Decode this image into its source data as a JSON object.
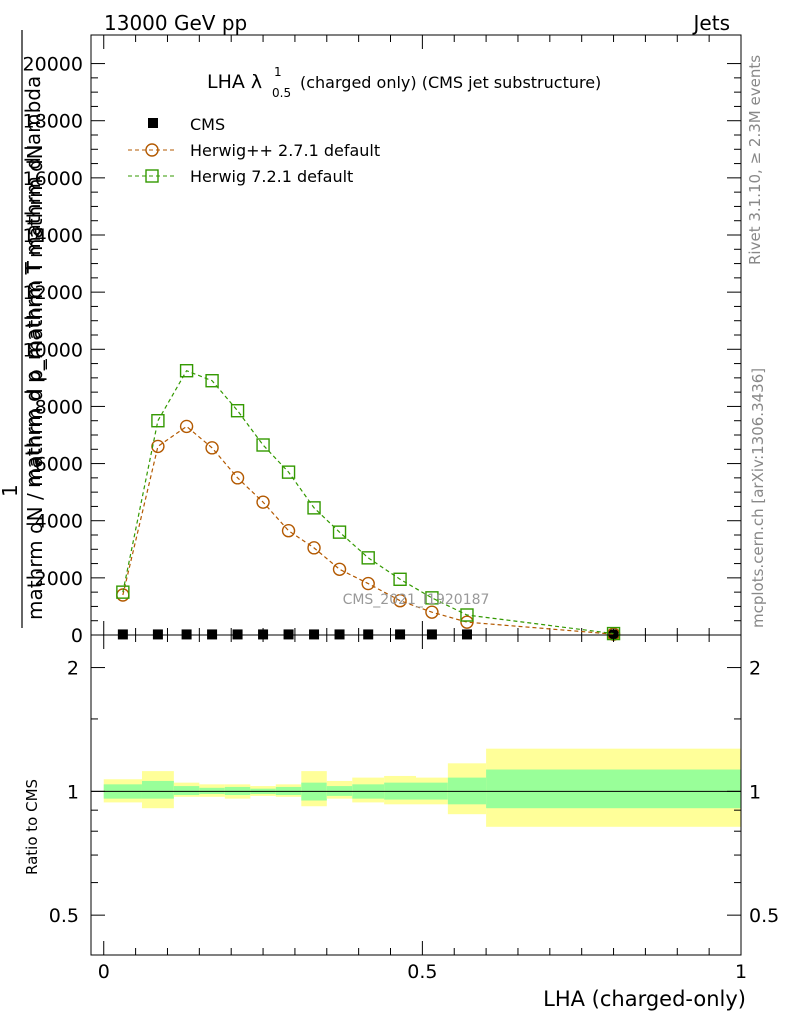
{
  "header": {
    "left": "13000 GeV pp",
    "right": "Jets"
  },
  "side_labels": {
    "rivet": "Rivet 3.1.10, ≥ 2.3M events",
    "mcplots": "mcplots.cern.ch [arXiv:1306.3436]"
  },
  "watermark": "CMS_2021_I1920187",
  "chart_data": [
    {
      "type": "scatter",
      "title": "LHA λ¹₀.₅ (charged only) (CMS jet substructure)",
      "title_parts": {
        "main": "LHA λ",
        "sup": "1",
        "sub": "0.5",
        "rest": "(charged only) (CMS jet substructure)"
      },
      "ylabel_top": "mathrm dN",
      "ylabel_mid": "mathrm d p_mathrm T mathrm d lambda",
      "ylabel_num": "1",
      "ylabel_bottom": "mathrm dN / mathrm d p_mathrm T",
      "ylim": [
        0,
        21000
      ],
      "y_ticks": [
        0,
        2000,
        4000,
        6000,
        8000,
        10000,
        12000,
        14000,
        16000,
        18000,
        20000
      ],
      "y_tick_labels": [
        "0",
        "2000",
        "4000",
        "6000",
        "8000",
        "10000",
        "12000",
        "14000",
        "16000",
        "18000",
        "20000"
      ],
      "xlim": [
        -0.02,
        1.0
      ],
      "legend_position": "top-left",
      "series": [
        {
          "name": "CMS",
          "color": "#000000",
          "marker": "filled-square",
          "x": [
            0.03,
            0.085,
            0.13,
            0.17,
            0.21,
            0.25,
            0.29,
            0.33,
            0.37,
            0.415,
            0.465,
            0.515,
            0.57,
            0.8
          ],
          "y": [
            20,
            20,
            20,
            20,
            20,
            20,
            20,
            20,
            20,
            20,
            20,
            20,
            20,
            20
          ]
        },
        {
          "name": "Herwig++ 2.7.1 default",
          "color": "#b35900",
          "marker": "open-circle",
          "x": [
            0.03,
            0.085,
            0.13,
            0.17,
            0.21,
            0.25,
            0.29,
            0.33,
            0.37,
            0.415,
            0.465,
            0.515,
            0.57,
            0.8
          ],
          "y": [
            1400,
            6600,
            7300,
            6550,
            5500,
            4650,
            3650,
            3050,
            2300,
            1800,
            1200,
            800,
            450,
            30
          ]
        },
        {
          "name": "Herwig 7.2.1 default",
          "color": "#339900",
          "marker": "open-square",
          "x": [
            0.03,
            0.085,
            0.13,
            0.17,
            0.21,
            0.25,
            0.29,
            0.33,
            0.37,
            0.415,
            0.465,
            0.515,
            0.57,
            0.8
          ],
          "y": [
            1500,
            7500,
            9250,
            8900,
            7850,
            6650,
            5700,
            4450,
            3600,
            2700,
            1950,
            1300,
            700,
            50
          ]
        }
      ]
    },
    {
      "type": "area",
      "ylabel": "Ratio to CMS",
      "ylim": [
        0.4,
        2.4
      ],
      "log_y": true,
      "xlim": [
        -0.02,
        1.0
      ],
      "xlabel": "LHA (charged-only)",
      "y_ticks": [
        0.5,
        1,
        2
      ],
      "y_tick_labels": [
        "0.5",
        "1",
        "2"
      ],
      "x_ticks": [
        0,
        0.5,
        1
      ],
      "x_tick_labels": [
        "0",
        "0.5",
        "1"
      ],
      "reference_line": 1,
      "bins": [
        {
          "x0": 0.0,
          "x1": 0.06,
          "stat": [
            0.96,
            1.04
          ],
          "total": [
            0.94,
            1.07
          ]
        },
        {
          "x0": 0.06,
          "x1": 0.11,
          "stat": [
            0.96,
            1.06
          ],
          "total": [
            0.91,
            1.12
          ]
        },
        {
          "x0": 0.11,
          "x1": 0.15,
          "stat": [
            0.98,
            1.03
          ],
          "total": [
            0.97,
            1.05
          ]
        },
        {
          "x0": 0.15,
          "x1": 0.19,
          "stat": [
            0.985,
            1.02
          ],
          "total": [
            0.97,
            1.04
          ]
        },
        {
          "x0": 0.19,
          "x1": 0.23,
          "stat": [
            0.98,
            1.025
          ],
          "total": [
            0.96,
            1.04
          ]
        },
        {
          "x0": 0.23,
          "x1": 0.27,
          "stat": [
            0.985,
            1.015
          ],
          "total": [
            0.975,
            1.03
          ]
        },
        {
          "x0": 0.27,
          "x1": 0.31,
          "stat": [
            0.98,
            1.025
          ],
          "total": [
            0.97,
            1.04
          ]
        },
        {
          "x0": 0.31,
          "x1": 0.35,
          "stat": [
            0.95,
            1.05
          ],
          "total": [
            0.92,
            1.12
          ]
        },
        {
          "x0": 0.35,
          "x1": 0.39,
          "stat": [
            0.975,
            1.03
          ],
          "total": [
            0.96,
            1.06
          ]
        },
        {
          "x0": 0.39,
          "x1": 0.44,
          "stat": [
            0.96,
            1.04
          ],
          "total": [
            0.94,
            1.08
          ]
        },
        {
          "x0": 0.44,
          "x1": 0.49,
          "stat": [
            0.955,
            1.05
          ],
          "total": [
            0.93,
            1.09
          ]
        },
        {
          "x0": 0.49,
          "x1": 0.54,
          "stat": [
            0.955,
            1.05
          ],
          "total": [
            0.93,
            1.08
          ]
        },
        {
          "x0": 0.54,
          "x1": 0.6,
          "stat": [
            0.93,
            1.08
          ],
          "total": [
            0.88,
            1.17
          ]
        },
        {
          "x0": 0.6,
          "x1": 1.0,
          "stat": [
            0.91,
            1.13
          ],
          "total": [
            0.82,
            1.27
          ]
        }
      ],
      "band_colors": {
        "stat": "#99ff99",
        "total": "#ffff99"
      }
    }
  ]
}
